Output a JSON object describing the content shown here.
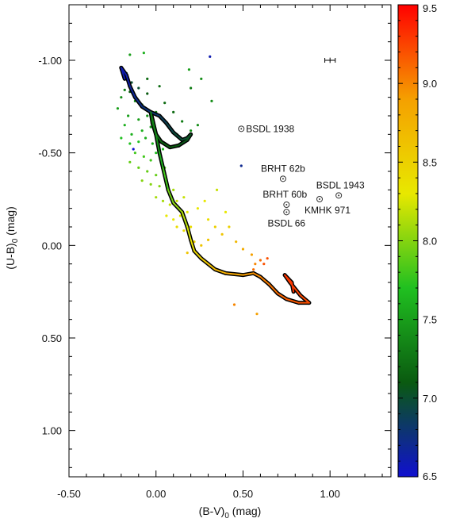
{
  "chart_data": {
    "type": "scatter",
    "title": "",
    "xlabel": {
      "base": "(B-V)",
      "sub": "0",
      "unit": " (mag)"
    },
    "ylabel": {
      "base": "(U-B)",
      "sub": "0",
      "unit": " (mag)"
    },
    "xlim": [
      -0.5,
      1.35
    ],
    "ylim": [
      -1.3,
      1.25
    ],
    "y_inverted": true,
    "grid": false,
    "x_ticks": [
      {
        "value": -0.5,
        "label": "-0.50"
      },
      {
        "value": 0.0,
        "label": "0.00"
      },
      {
        "value": 0.5,
        "label": "0.50"
      },
      {
        "value": 1.0,
        "label": "1.00"
      }
    ],
    "y_ticks": [
      {
        "value": -1.0,
        "label": "-1.00"
      },
      {
        "value": -0.5,
        "label": "-0.50"
      },
      {
        "value": 0.0,
        "label": "0.00"
      },
      {
        "value": 0.5,
        "label": "0.50"
      },
      {
        "value": 1.0,
        "label": "1.00"
      }
    ],
    "colorbar": {
      "min": 6.5,
      "max": 9.5,
      "colors": [
        "#1010d0",
        "#0a5a10",
        "#20c020",
        "#e8e800",
        "#f5a000",
        "#ff0000"
      ],
      "ticks": [
        {
          "value": 6.5,
          "label": "6.5"
        },
        {
          "value": 7.0,
          "label": "7.0"
        },
        {
          "value": 7.5,
          "label": "7.5"
        },
        {
          "value": 8.0,
          "label": "8.0"
        },
        {
          "value": 8.5,
          "label": "8.5"
        },
        {
          "value": 9.0,
          "label": "9.0"
        },
        {
          "value": 9.5,
          "label": "9.5"
        }
      ]
    },
    "isochrone": [
      [
        -0.18,
        -0.9
      ],
      [
        -0.2,
        -0.96
      ],
      [
        -0.17,
        -0.92
      ],
      [
        -0.15,
        -0.86
      ],
      [
        -0.12,
        -0.8
      ],
      [
        -0.08,
        -0.75
      ],
      [
        -0.03,
        -0.72
      ],
      [
        0.02,
        -0.7
      ],
      [
        0.06,
        -0.66
      ],
      [
        0.1,
        -0.61
      ],
      [
        0.15,
        -0.57
      ],
      [
        0.18,
        -0.58
      ],
      [
        0.2,
        -0.6
      ],
      [
        0.18,
        -0.57
      ],
      [
        0.13,
        -0.54
      ],
      [
        0.08,
        -0.53
      ],
      [
        0.03,
        -0.56
      ],
      [
        0.0,
        -0.6
      ],
      [
        -0.02,
        -0.66
      ],
      [
        -0.03,
        -0.72
      ],
      [
        -0.02,
        -0.68
      ],
      [
        0.0,
        -0.6
      ],
      [
        0.02,
        -0.5
      ],
      [
        0.04,
        -0.42
      ],
      [
        0.07,
        -0.3
      ],
      [
        0.1,
        -0.23
      ],
      [
        0.15,
        -0.18
      ],
      [
        0.18,
        -0.1
      ],
      [
        0.2,
        -0.03
      ],
      [
        0.22,
        0.03
      ],
      [
        0.26,
        0.07
      ],
      [
        0.3,
        0.1
      ],
      [
        0.34,
        0.13
      ],
      [
        0.4,
        0.15
      ],
      [
        0.5,
        0.16
      ],
      [
        0.56,
        0.15
      ],
      [
        0.6,
        0.17
      ],
      [
        0.65,
        0.21
      ],
      [
        0.7,
        0.26
      ],
      [
        0.75,
        0.29
      ],
      [
        0.82,
        0.31
      ],
      [
        0.88,
        0.31
      ],
      [
        0.83,
        0.27
      ],
      [
        0.77,
        0.2
      ],
      [
        0.74,
        0.16
      ],
      [
        0.78,
        0.2
      ],
      [
        0.79,
        0.25
      ]
    ],
    "isochrone_ages": [
      6.6,
      6.6,
      6.6,
      6.65,
      6.7,
      6.75,
      6.8,
      6.85,
      6.9,
      6.95,
      7.0,
      7.0,
      7.05,
      7.05,
      7.1,
      7.1,
      7.15,
      7.2,
      7.25,
      7.3,
      7.3,
      7.35,
      7.5,
      7.7,
      7.9,
      8.0,
      8.1,
      8.2,
      8.3,
      8.4,
      8.5,
      8.6,
      8.7,
      8.8,
      8.9,
      8.95,
      9.0,
      9.05,
      9.1,
      9.15,
      9.2,
      9.2,
      9.25,
      9.25,
      9.3,
      9.3,
      9.3
    ],
    "points": [
      {
        "x": 0.31,
        "y": -1.02,
        "age": 6.6
      },
      {
        "x": -0.13,
        "y": -0.52,
        "age": 6.5
      },
      {
        "x": 0.49,
        "y": -0.43,
        "age": 6.7
      },
      {
        "x": -0.2,
        "y": -0.95,
        "age": 6.8
      },
      {
        "x": -0.17,
        "y": -0.93,
        "age": 6.9
      },
      {
        "x": -0.14,
        "y": -0.88,
        "age": 7.0
      },
      {
        "x": -0.1,
        "y": -0.85,
        "age": 7.0
      },
      {
        "x": -0.05,
        "y": -0.9,
        "age": 7.2
      },
      {
        "x": -0.15,
        "y": -0.83,
        "age": 7.1
      },
      {
        "x": -0.18,
        "y": -0.84,
        "age": 7.3
      },
      {
        "x": -0.12,
        "y": -0.78,
        "age": 7.4
      },
      {
        "x": -0.08,
        "y": -0.76,
        "age": 7.3
      },
      {
        "x": -0.2,
        "y": -0.8,
        "age": 7.4
      },
      {
        "x": -0.22,
        "y": -0.74,
        "age": 7.5
      },
      {
        "x": -0.16,
        "y": -0.7,
        "age": 7.5
      },
      {
        "x": -0.1,
        "y": -0.68,
        "age": 7.5
      },
      {
        "x": -0.05,
        "y": -0.7,
        "age": 7.4
      },
      {
        "x": 0.0,
        "y": -0.72,
        "age": 7.3
      },
      {
        "x": 0.05,
        "y": -0.77,
        "age": 7.2
      },
      {
        "x": 0.1,
        "y": -0.72,
        "age": 7.2
      },
      {
        "x": 0.15,
        "y": -0.67,
        "age": 7.3
      },
      {
        "x": 0.2,
        "y": -0.62,
        "age": 7.4
      },
      {
        "x": 0.24,
        "y": -0.65,
        "age": 7.4
      },
      {
        "x": 0.12,
        "y": -0.6,
        "age": 7.5
      },
      {
        "x": -0.18,
        "y": -0.65,
        "age": 7.6
      },
      {
        "x": -0.14,
        "y": -0.6,
        "age": 7.6
      },
      {
        "x": -0.08,
        "y": -0.62,
        "age": 7.6
      },
      {
        "x": -0.03,
        "y": -0.64,
        "age": 7.5
      },
      {
        "x": -0.2,
        "y": -0.58,
        "age": 7.7
      },
      {
        "x": -0.15,
        "y": -0.55,
        "age": 7.7
      },
      {
        "x": -0.1,
        "y": -0.56,
        "age": 7.7
      },
      {
        "x": -0.06,
        "y": -0.58,
        "age": 7.6
      },
      {
        "x": -0.02,
        "y": -0.55,
        "age": 7.6
      },
      {
        "x": -0.12,
        "y": -0.5,
        "age": 7.8
      },
      {
        "x": -0.07,
        "y": -0.48,
        "age": 7.8
      },
      {
        "x": -0.03,
        "y": -0.46,
        "age": 7.8
      },
      {
        "x": 0.0,
        "y": -0.5,
        "age": 7.7
      },
      {
        "x": 0.04,
        "y": -0.52,
        "age": 7.7
      },
      {
        "x": -0.15,
        "y": -0.45,
        "age": 7.9
      },
      {
        "x": -0.1,
        "y": -0.42,
        "age": 7.9
      },
      {
        "x": -0.05,
        "y": -0.4,
        "age": 7.9
      },
      {
        "x": 0.0,
        "y": -0.38,
        "age": 7.9
      },
      {
        "x": 0.05,
        "y": -0.42,
        "age": 7.8
      },
      {
        "x": -0.08,
        "y": -0.35,
        "age": 8.0
      },
      {
        "x": -0.03,
        "y": -0.33,
        "age": 8.0
      },
      {
        "x": 0.02,
        "y": -0.32,
        "age": 8.0
      },
      {
        "x": 0.06,
        "y": -0.35,
        "age": 8.0
      },
      {
        "x": 0.1,
        "y": -0.3,
        "age": 8.1
      },
      {
        "x": 0.0,
        "y": -0.26,
        "age": 8.1
      },
      {
        "x": 0.04,
        "y": -0.24,
        "age": 8.1
      },
      {
        "x": 0.08,
        "y": -0.22,
        "age": 8.2
      },
      {
        "x": 0.12,
        "y": -0.24,
        "age": 8.2
      },
      {
        "x": 0.16,
        "y": -0.26,
        "age": 8.2
      },
      {
        "x": 0.06,
        "y": -0.16,
        "age": 8.3
      },
      {
        "x": 0.1,
        "y": -0.14,
        "age": 8.3
      },
      {
        "x": 0.14,
        "y": -0.16,
        "age": 8.3
      },
      {
        "x": 0.18,
        "y": -0.18,
        "age": 8.3
      },
      {
        "x": 0.12,
        "y": -0.1,
        "age": 8.4
      },
      {
        "x": 0.16,
        "y": -0.08,
        "age": 8.4
      },
      {
        "x": 0.2,
        "y": -0.1,
        "age": 8.4
      },
      {
        "x": 0.24,
        "y": -0.2,
        "age": 8.3
      },
      {
        "x": 0.28,
        "y": -0.24,
        "age": 8.3
      },
      {
        "x": 0.3,
        "y": -0.14,
        "age": 8.4
      },
      {
        "x": 0.34,
        "y": -0.1,
        "age": 8.5
      },
      {
        "x": 0.22,
        "y": -0.02,
        "age": 8.5
      },
      {
        "x": 0.26,
        "y": 0.0,
        "age": 8.6
      },
      {
        "x": 0.3,
        "y": -0.03,
        "age": 8.6
      },
      {
        "x": 0.18,
        "y": 0.04,
        "age": 8.6
      },
      {
        "x": 0.38,
        "y": -0.06,
        "age": 8.6
      },
      {
        "x": 0.42,
        "y": -0.1,
        "age": 8.5
      },
      {
        "x": 0.46,
        "y": -0.02,
        "age": 8.7
      },
      {
        "x": 0.5,
        "y": 0.02,
        "age": 8.8
      },
      {
        "x": 0.55,
        "y": 0.05,
        "age": 8.9
      },
      {
        "x": 0.57,
        "y": 0.1,
        "age": 9.0
      },
      {
        "x": 0.6,
        "y": 0.08,
        "age": 9.1
      },
      {
        "x": 0.62,
        "y": 0.1,
        "age": 9.2
      },
      {
        "x": 0.64,
        "y": 0.07,
        "age": 9.2
      },
      {
        "x": 0.56,
        "y": 0.13,
        "age": 9.1
      },
      {
        "x": 0.45,
        "y": 0.32,
        "age": 9.0
      },
      {
        "x": 0.58,
        "y": 0.37,
        "age": 8.9
      },
      {
        "x": 0.35,
        "y": -0.3,
        "age": 8.2
      },
      {
        "x": 0.4,
        "y": -0.18,
        "age": 8.3
      },
      {
        "x": -0.05,
        "y": -0.82,
        "age": 7.1
      },
      {
        "x": 0.02,
        "y": -0.86,
        "age": 7.2
      },
      {
        "x": 0.2,
        "y": -0.85,
        "age": 7.3
      },
      {
        "x": 0.32,
        "y": -0.78,
        "age": 7.4
      },
      {
        "x": -0.15,
        "y": -1.03,
        "age": 7.5
      },
      {
        "x": -0.07,
        "y": -1.04,
        "age": 7.6
      },
      {
        "x": 0.19,
        "y": -0.95,
        "age": 7.5
      },
      {
        "x": 0.26,
        "y": -0.9,
        "age": 7.4
      }
    ],
    "labeled_clusters": [
      {
        "name": "BSDL 1938",
        "x": 0.49,
        "y": -0.63,
        "label_side": "right",
        "dx": 6,
        "dy": 4
      },
      {
        "name": "BRHT 62b",
        "x": 0.73,
        "y": -0.36,
        "label_side": "above",
        "dx": 0,
        "dy": -9
      },
      {
        "name": "BRHT 60b",
        "x": 0.75,
        "y": -0.22,
        "label_side": "above",
        "dx": -2,
        "dy": -9
      },
      {
        "name": "BSDL 66",
        "x": 0.75,
        "y": -0.18,
        "label_side": "below",
        "dx": 0,
        "dy": 18
      },
      {
        "name": "KMHK 971",
        "x": 0.94,
        "y": -0.25,
        "label_side": "below",
        "dx": 10,
        "dy": 18
      },
      {
        "name": "BSDL 1943",
        "x": 1.05,
        "y": -0.27,
        "label_side": "above",
        "dx": 2,
        "dy": -9
      }
    ],
    "error_bar": {
      "x": 1.0,
      "y": -1.0,
      "xerr": 0.03,
      "yerr": 0.01
    }
  }
}
